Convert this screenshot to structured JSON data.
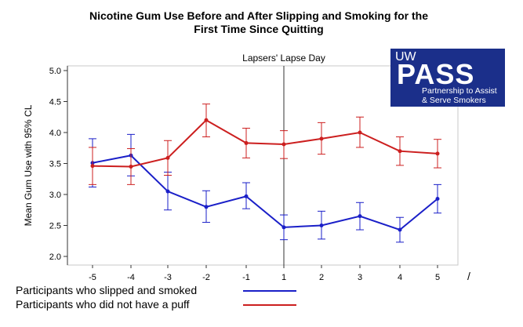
{
  "chart_data": {
    "type": "line",
    "title": "Nicotine Gum Use Before and After Slipping and Smoking for the First Time Since Quitting",
    "title_lines": [
      "Nicotine Gum Use Before and After Slipping and Smoking for the",
      "First Time Since Quitting"
    ],
    "ylabel": "Mean Gum Use with 95% CL",
    "xlabel": "",
    "ylim": [
      2.0,
      5.0
    ],
    "y_ticks": [
      "2.0",
      "2.5",
      "3.0",
      "3.5",
      "4.0",
      "4.5",
      "5.0"
    ],
    "categories": [
      "-5",
      "-4",
      "-3",
      "-2",
      "-1",
      "1",
      "2",
      "3",
      "4",
      "5"
    ],
    "annotation": "Lapsers' Lapse Day",
    "annotation_at": "1",
    "grid": false,
    "series": [
      {
        "name": "Participants who slipped and smoked",
        "color": "#1a1fc8",
        "values": [
          3.51,
          3.63,
          3.05,
          2.8,
          2.97,
          2.47,
          2.5,
          2.65,
          2.43,
          2.93
        ],
        "lower": [
          3.12,
          3.3,
          2.75,
          2.55,
          2.77,
          2.27,
          2.28,
          2.43,
          2.23,
          2.7
        ],
        "upper": [
          3.9,
          3.97,
          3.36,
          3.06,
          3.19,
          2.67,
          2.73,
          2.87,
          2.63,
          3.16
        ]
      },
      {
        "name": "Participants who did not have a puff",
        "color": "#cc1f1f",
        "values": [
          3.46,
          3.45,
          3.59,
          4.2,
          3.83,
          3.81,
          3.9,
          4.0,
          3.7,
          3.66
        ],
        "lower": [
          3.16,
          3.16,
          3.31,
          3.93,
          3.59,
          3.58,
          3.65,
          3.76,
          3.47,
          3.43
        ],
        "upper": [
          3.76,
          3.74,
          3.87,
          4.46,
          4.07,
          4.03,
          4.16,
          4.25,
          3.93,
          3.89
        ]
      }
    ]
  },
  "logo": {
    "uw": "UW",
    "pass": "PASS",
    "sub1": "Partnership to Assist",
    "sub2": "& Serve Smokers"
  },
  "legend": {
    "slipped": "Participants who slipped and smoked",
    "nopuff": "Participants who did not have a puff"
  },
  "stray_mark": "/"
}
